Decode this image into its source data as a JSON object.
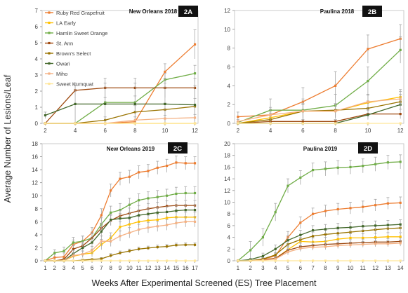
{
  "figure": {
    "ylabel": "Average Number of Lesions/Leaf",
    "xlabel": "Weeks After Experimental Screened (ES) Tree Placement"
  },
  "legend": [
    {
      "name": "Ruby Red Grapefruit",
      "color": "#ED7D31"
    },
    {
      "name": "LA Early",
      "color": "#FFC000"
    },
    {
      "name": "Hamlin Sweet Orange",
      "color": "#70AD47"
    },
    {
      "name": "St. Ann",
      "color": "#9E480E"
    },
    {
      "name": "Brown's Select",
      "color": "#997300"
    },
    {
      "name": "Owari",
      "color": "#43682B"
    },
    {
      "name": "Miho",
      "color": "#F4B183"
    },
    {
      "name": "Sweet Kumquat",
      "color": "#FFE699"
    }
  ],
  "chart_data": [
    {
      "type": "line",
      "panel": "2A",
      "title": "New Orleans 2018",
      "x": [
        2,
        4,
        6,
        8,
        10,
        12
      ],
      "ylim": [
        0,
        7
      ],
      "yticks": [
        0,
        1,
        2,
        3,
        4,
        5,
        6,
        7
      ],
      "series": [
        {
          "name": "Ruby Red Grapefruit",
          "values": [
            0,
            0,
            0,
            0.1,
            3.2,
            4.9
          ],
          "err": [
            0,
            0,
            0,
            0.1,
            0.5,
            0.9
          ]
        },
        {
          "name": "LA Early",
          "values": [
            0,
            0,
            0,
            0,
            0,
            0
          ],
          "err": [
            0,
            0,
            0,
            0,
            0,
            0
          ]
        },
        {
          "name": "Hamlin Sweet Orange",
          "values": [
            0,
            0,
            1.3,
            1.3,
            2.7,
            3.1
          ],
          "err": [
            0,
            0,
            0.3,
            0.4,
            0.4,
            0.5
          ]
        },
        {
          "name": "St. Ann",
          "values": [
            0,
            2.05,
            2.2,
            2.2,
            2.2,
            2.2
          ],
          "err": [
            0,
            0.3,
            0.6,
            0.6,
            0.6,
            0.6
          ]
        },
        {
          "name": "Brown's Select",
          "values": [
            0,
            0,
            0.2,
            0.7,
            0.85,
            1.05
          ],
          "err": [
            0,
            0,
            0.2,
            0.4,
            0.4,
            0.5
          ]
        },
        {
          "name": "Owari",
          "values": [
            0.5,
            1.2,
            1.2,
            1.2,
            1.2,
            1.15
          ],
          "err": [
            0.2,
            1.3,
            1.3,
            1.3,
            1.3,
            1.2
          ]
        },
        {
          "name": "Miho",
          "values": [
            0,
            0,
            0,
            0.2,
            0.3,
            0.35
          ],
          "err": [
            0,
            0,
            0,
            0.2,
            0.2,
            0.2
          ]
        },
        {
          "name": "Sweet Kumquat",
          "values": [
            0,
            0,
            0,
            0,
            0,
            0
          ],
          "err": [
            0,
            0,
            0,
            0,
            0,
            0
          ]
        }
      ]
    },
    {
      "type": "line",
      "panel": "2B",
      "title": "Paulina 2018",
      "x": [
        2,
        4,
        6,
        8,
        10,
        12
      ],
      "ylim": [
        0,
        12
      ],
      "yticks": [
        0,
        2,
        4,
        6,
        8,
        10,
        12
      ],
      "series": [
        {
          "name": "Ruby Red Grapefruit",
          "values": [
            0.7,
            0.9,
            2.3,
            4,
            7.9,
            9
          ],
          "err": [
            0.5,
            0.8,
            1.5,
            1.5,
            1.5,
            1.5
          ]
        },
        {
          "name": "LA Early",
          "values": [
            0,
            0.6,
            1.3,
            1.3,
            2.2,
            2.8
          ],
          "err": [
            0,
            0.5,
            0.8,
            0.8,
            0.8,
            0.8
          ]
        },
        {
          "name": "Hamlin Sweet Orange",
          "values": [
            0.1,
            1.4,
            1.4,
            1.9,
            4.5,
            7.8
          ],
          "err": [
            0.1,
            1.2,
            1.2,
            1.2,
            1.5,
            1.4
          ]
        },
        {
          "name": "St. Ann",
          "values": [
            0,
            0.2,
            0.2,
            0.2,
            1,
            1
          ],
          "err": [
            0,
            0.2,
            0.2,
            0.2,
            0.5,
            0.5
          ]
        },
        {
          "name": "Brown's Select",
          "values": [
            0,
            0.4,
            1.3,
            1.4,
            1.6,
            2.3
          ],
          "err": [
            0,
            0.4,
            0.7,
            0.7,
            0.8,
            0.8
          ]
        },
        {
          "name": "Owari",
          "values": [
            0,
            0,
            0,
            0,
            0.9,
            2
          ],
          "err": [
            0,
            0,
            0,
            0,
            0.5,
            0.5
          ]
        },
        {
          "name": "Miho",
          "values": [
            0.2,
            0.9,
            1.3,
            1.3,
            2.3,
            2.6
          ],
          "err": [
            0.2,
            0.6,
            0.8,
            0.8,
            0.8,
            0.8
          ]
        },
        {
          "name": "Sweet Kumquat",
          "values": [
            0,
            0,
            0,
            0,
            0,
            0
          ],
          "err": [
            0,
            0,
            0,
            0,
            0,
            0
          ]
        }
      ]
    },
    {
      "type": "line",
      "panel": "2C",
      "title": "New Orleans 2019",
      "x": [
        1,
        2,
        3,
        4,
        5,
        6,
        7,
        8,
        9,
        10,
        11,
        12,
        13,
        14,
        15,
        16,
        17
      ],
      "ylim": [
        0,
        18
      ],
      "yticks": [
        0,
        2,
        4,
        6,
        8,
        10,
        12,
        14,
        16,
        18
      ],
      "series": [
        {
          "name": "Ruby Red Grapefruit",
          "values": [
            0,
            0.5,
            0.6,
            2.5,
            3,
            4.3,
            7,
            10.8,
            12.6,
            12.9,
            13.6,
            13.8,
            14.3,
            14.6,
            15.1,
            15,
            15
          ],
          "err": [
            0,
            0.5,
            0.6,
            0.7,
            0.8,
            0.8,
            1,
            1,
            1,
            1,
            1,
            1,
            1,
            1,
            1,
            1,
            1
          ]
        },
        {
          "name": "LA Early",
          "values": [
            0,
            0,
            0,
            0.7,
            1,
            1.2,
            2.5,
            3.5,
            5.2,
            5.6,
            6,
            6.2,
            6.3,
            6.6,
            6.7,
            6.7,
            6.7
          ],
          "err": [
            0,
            0,
            0,
            0.4,
            0.5,
            0.6,
            0.8,
            0.8,
            0.8,
            0.8,
            0.8,
            0.8,
            0.8,
            0.8,
            0.8,
            0.8,
            0.8
          ]
        },
        {
          "name": "Hamlin Sweet Orange",
          "values": [
            0,
            1.2,
            1.5,
            2.8,
            3,
            3.5,
            5.6,
            7.4,
            7.8,
            8.6,
            9.3,
            9.6,
            9.8,
            10,
            10.3,
            10.4,
            10.4
          ],
          "err": [
            0,
            0.5,
            0.6,
            0.8,
            0.8,
            0.8,
            1,
            1,
            1,
            1,
            1,
            1,
            1,
            1,
            1,
            1,
            1
          ]
        },
        {
          "name": "St. Ann",
          "values": [
            0,
            0,
            0.2,
            1.8,
            2.3,
            3.5,
            5,
            6.2,
            6.9,
            7.3,
            7.7,
            8,
            8.2,
            8.4,
            8.5,
            8.5,
            8.5
          ],
          "err": [
            0,
            0,
            0.2,
            0.5,
            0.6,
            0.7,
            0.8,
            0.8,
            0.8,
            0.8,
            0.8,
            0.8,
            0.8,
            0.8,
            0.8,
            0.8,
            0.8
          ]
        },
        {
          "name": "Brown's Select",
          "values": [
            0,
            0,
            0,
            0,
            0.1,
            0.2,
            0.3,
            0.8,
            1.2,
            1.5,
            1.8,
            1.95,
            2.1,
            2.2,
            2.4,
            2.45,
            2.45
          ],
          "err": [
            0,
            0,
            0,
            0,
            0.1,
            0.1,
            0.2,
            0.3,
            0.3,
            0.3,
            0.3,
            0.3,
            0.3,
            0.3,
            0.3,
            0.3,
            0.3
          ]
        },
        {
          "name": "Owari",
          "values": [
            0,
            0,
            0,
            1.1,
            2,
            2.8,
            4.5,
            6.3,
            6.5,
            6.6,
            7,
            7.2,
            7.4,
            7.5,
            7.7,
            7.8,
            7.8
          ],
          "err": [
            0,
            0,
            0,
            0.5,
            0.6,
            0.7,
            0.8,
            0.8,
            0.8,
            0.8,
            0.8,
            0.8,
            0.8,
            0.8,
            0.8,
            0.8,
            0.8
          ]
        },
        {
          "name": "Miho",
          "values": [
            0,
            0,
            0,
            0.8,
            1,
            1.6,
            3,
            3,
            3.8,
            4.3,
            4.8,
            5.1,
            5.3,
            5.5,
            5.8,
            6,
            6
          ],
          "err": [
            0,
            0,
            0,
            0.4,
            0.5,
            0.6,
            0.8,
            0.8,
            0.8,
            0.8,
            0.8,
            0.8,
            0.8,
            0.8,
            0.8,
            0.8,
            0.8
          ]
        },
        {
          "name": "Sweet Kumquat",
          "values": [
            0,
            0,
            0,
            0,
            0,
            0,
            0,
            0,
            0,
            0,
            0,
            0,
            0,
            0,
            0,
            0,
            0
          ],
          "err": [
            0,
            0,
            0,
            0,
            0,
            0,
            0,
            0,
            0,
            0,
            0,
            0,
            0,
            0,
            0,
            0,
            0
          ]
        }
      ]
    },
    {
      "type": "line",
      "panel": "2D",
      "title": "Paulina 2019",
      "x": [
        1,
        2,
        3,
        4,
        5,
        6,
        7,
        8,
        9,
        10,
        11,
        12,
        13,
        14
      ],
      "ylim": [
        0,
        20
      ],
      "yticks": [
        0,
        2,
        4,
        6,
        8,
        10,
        12,
        14,
        16,
        18,
        20
      ],
      "series": [
        {
          "name": "Ruby Red Grapefruit",
          "values": [
            0,
            0,
            0.3,
            0.8,
            4,
            6.5,
            8,
            8.5,
            8.8,
            9,
            9.2,
            9.5,
            9.8,
            9.9
          ],
          "err": [
            0,
            0,
            0.3,
            0.5,
            1,
            1,
            1,
            1,
            1,
            1,
            1,
            1,
            1,
            1
          ]
        },
        {
          "name": "LA Early",
          "values": [
            0,
            0,
            0.2,
            0.4,
            1.9,
            3.3,
            3.2,
            3.3,
            3.7,
            3.9,
            3.9,
            4,
            4.1,
            4.1
          ],
          "err": [
            0,
            0,
            0.2,
            0.3,
            0.6,
            0.7,
            0.7,
            0.7,
            0.7,
            0.7,
            0.7,
            0.7,
            0.7,
            0.7
          ]
        },
        {
          "name": "Hamlin Sweet Orange",
          "values": [
            0,
            1.8,
            4,
            8.3,
            12.8,
            14.2,
            15.5,
            15.7,
            15.9,
            16,
            16.2,
            16.5,
            16.8,
            16.9
          ],
          "err": [
            0,
            1.5,
            1.5,
            1.5,
            1.2,
            1.2,
            1.2,
            1.2,
            1.2,
            1.2,
            1.2,
            1.2,
            1.2,
            1.2
          ]
        },
        {
          "name": "St. Ann",
          "values": [
            0,
            0,
            0.2,
            0.4,
            1.8,
            2.4,
            2.6,
            2.8,
            2.9,
            3,
            3.1,
            3.2,
            3.2,
            3.3
          ],
          "err": [
            0,
            0,
            0.2,
            0.3,
            0.5,
            0.6,
            0.6,
            0.6,
            0.6,
            0.6,
            0.6,
            0.6,
            0.6,
            0.6
          ]
        },
        {
          "name": "Brown's Select",
          "values": [
            0,
            0,
            0.3,
            1,
            2.8,
            3.6,
            4.2,
            4.5,
            4.7,
            4.9,
            5.1,
            5.3,
            5.5,
            5.6
          ],
          "err": [
            0,
            0,
            0.2,
            0.4,
            0.7,
            0.7,
            0.7,
            0.7,
            0.7,
            0.7,
            0.7,
            0.7,
            0.7,
            0.7
          ]
        },
        {
          "name": "Owari",
          "values": [
            0,
            0.2,
            0.8,
            2,
            3.5,
            4.4,
            5.2,
            5.4,
            5.6,
            5.7,
            5.9,
            6,
            6.1,
            6.2
          ],
          "err": [
            0,
            0.2,
            0.5,
            0.7,
            0.8,
            0.8,
            0.8,
            0.8,
            0.8,
            0.8,
            0.8,
            0.8,
            0.8,
            0.8
          ]
        },
        {
          "name": "Miho",
          "values": [
            0,
            0,
            0.1,
            0.3,
            1.5,
            2.1,
            2.3,
            2.4,
            2.6,
            2.7,
            2.8,
            2.9,
            2.9,
            3
          ],
          "err": [
            0,
            0,
            0.1,
            0.2,
            0.5,
            0.5,
            0.5,
            0.5,
            0.5,
            0.5,
            0.5,
            0.5,
            0.5,
            0.5
          ]
        },
        {
          "name": "Sweet Kumquat",
          "values": [
            0,
            0,
            0,
            0,
            0,
            0,
            0,
            0,
            0,
            0,
            0,
            0,
            0,
            0
          ],
          "err": [
            0,
            0,
            0,
            0,
            0,
            0,
            0,
            0,
            0,
            0,
            0,
            0,
            0,
            0
          ]
        }
      ]
    }
  ]
}
